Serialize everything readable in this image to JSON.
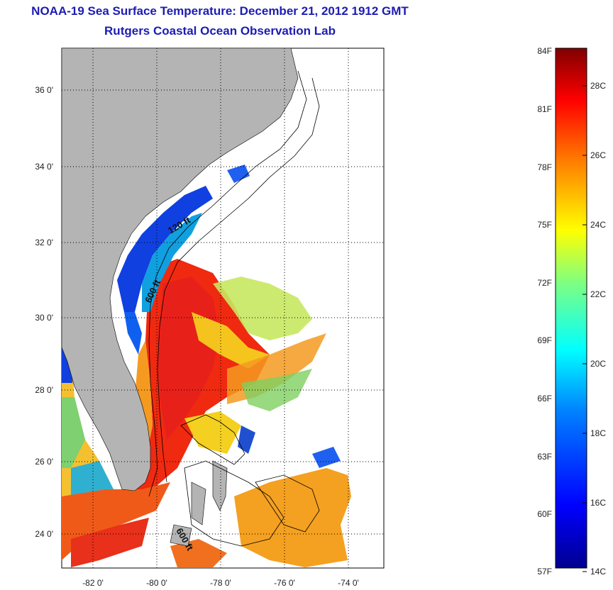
{
  "header": {
    "title": "NOAA-19 Sea Surface Temperature:  December 21, 2012 1912 GMT",
    "subtitle": "Rutgers Coastal Ocean Observation Lab"
  },
  "map": {
    "lon_ticks": [
      "-82 0'",
      "-80 0'",
      "-78 0'",
      "-76 0'",
      "-74 0'"
    ],
    "lat_ticks": [
      "24 0'",
      "26 0'",
      "28 0'",
      "30 0'",
      "32 0'",
      "34 0'",
      "36 0'"
    ],
    "contour_labels": [
      "120 ft",
      "600 ft",
      "600 ft"
    ],
    "land_color": "#b4b4b4"
  },
  "colorbar": {
    "fahrenheit_labels": [
      "84F",
      "81F",
      "78F",
      "75F",
      "72F",
      "69F",
      "66F",
      "63F",
      "60F",
      "57F"
    ],
    "celsius_labels": [
      "28C",
      "26C",
      "24C",
      "22C",
      "20C",
      "18C",
      "16C",
      "14C"
    ],
    "colors": [
      "#00008f",
      "#0000ff",
      "#0080ff",
      "#00ffff",
      "#80ff80",
      "#ffff00",
      "#ff8000",
      "#ff0000",
      "#800000"
    ]
  }
}
